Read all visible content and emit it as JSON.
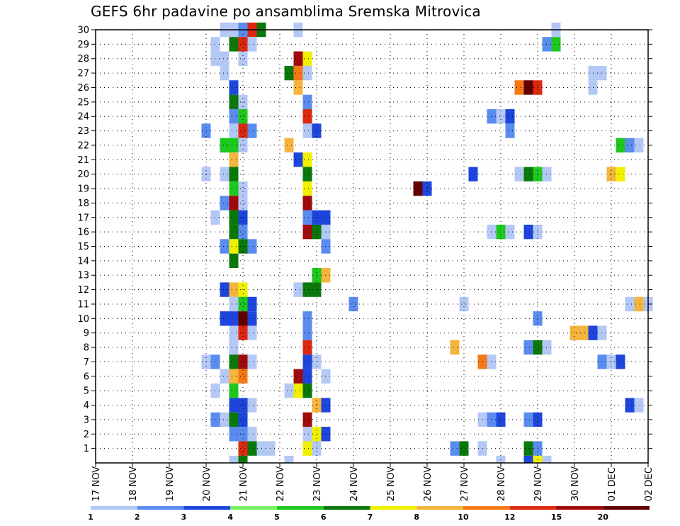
{
  "chart_data": {
    "type": "heatmap",
    "title": "GEFS 6hr padavine po ansamblima Sremska Mitrovica",
    "xlabel": "",
    "ylabel": "",
    "x_ticks": [
      "17 NOV",
      "18 NOV",
      "19 NOV",
      "20 NOV",
      "21 NOV",
      "22 NOV",
      "23 NOV",
      "24 NOV",
      "25 NOV",
      "26 NOV",
      "27 NOV",
      "28 NOV",
      "29 NOV",
      "30 NOV",
      "01 DEC",
      "02 DEC"
    ],
    "y_ticks": [
      1,
      2,
      3,
      4,
      5,
      6,
      7,
      8,
      9,
      10,
      11,
      12,
      13,
      14,
      15,
      16,
      17,
      18,
      19,
      20,
      21,
      22,
      23,
      24,
      25,
      26,
      27,
      28,
      29,
      30
    ],
    "ylim": [
      0,
      30
    ],
    "grid": true,
    "legend": {
      "placement": "bottom",
      "labels": [
        "1",
        "2",
        "3",
        "4",
        "5",
        "6",
        "7",
        "8",
        "10",
        "12",
        "15",
        "20"
      ],
      "colors": [
        "#b4c8f5",
        "#5a8cf0",
        "#1e46dc",
        "#78f064",
        "#1ec81e",
        "#0a780a",
        "#f0f000",
        "#f5b43c",
        "#f57814",
        "#dc280f",
        "#a00a0a",
        "#640000"
      ]
    },
    "cells": [
      [
        3.5,
        30,
        1
      ],
      [
        3.75,
        30,
        1
      ],
      [
        4.0,
        30,
        2
      ],
      [
        4.25,
        30,
        10
      ],
      [
        4.5,
        30,
        6
      ],
      [
        5.5,
        30,
        1
      ],
      [
        12.5,
        30,
        1
      ],
      [
        3.25,
        29,
        1
      ],
      [
        3.75,
        29,
        6
      ],
      [
        4.0,
        29,
        10
      ],
      [
        4.25,
        29,
        1
      ],
      [
        12.25,
        29,
        2
      ],
      [
        12.5,
        29,
        5
      ],
      [
        3.25,
        28,
        1
      ],
      [
        3.5,
        28,
        1
      ],
      [
        4.0,
        28,
        1
      ],
      [
        5.5,
        28,
        11
      ],
      [
        5.75,
        28,
        7
      ],
      [
        3.5,
        27,
        1
      ],
      [
        5.25,
        27,
        6
      ],
      [
        5.5,
        27,
        9
      ],
      [
        5.75,
        27,
        1
      ],
      [
        13.5,
        27,
        1
      ],
      [
        13.75,
        27,
        1
      ],
      [
        3.75,
        26,
        3
      ],
      [
        5.5,
        26,
        8
      ],
      [
        11.5,
        26,
        9
      ],
      [
        11.75,
        26,
        12
      ],
      [
        12.0,
        26,
        10
      ],
      [
        13.5,
        26,
        1
      ],
      [
        3.75,
        25,
        6
      ],
      [
        4.0,
        25,
        1
      ],
      [
        5.75,
        25,
        2
      ],
      [
        3.75,
        24,
        2
      ],
      [
        4.0,
        24,
        5
      ],
      [
        5.75,
        24,
        10
      ],
      [
        10.75,
        24,
        2
      ],
      [
        11.0,
        24,
        1
      ],
      [
        11.25,
        24,
        3
      ],
      [
        3.0,
        23,
        2
      ],
      [
        3.75,
        23,
        1
      ],
      [
        4.0,
        23,
        10
      ],
      [
        4.25,
        23,
        2
      ],
      [
        5.75,
        23,
        1
      ],
      [
        6.0,
        23,
        3
      ],
      [
        11.25,
        23,
        2
      ],
      [
        3.5,
        22,
        5
      ],
      [
        3.75,
        22,
        5
      ],
      [
        4.0,
        22,
        1
      ],
      [
        5.25,
        22,
        8
      ],
      [
        14.25,
        22,
        5
      ],
      [
        14.5,
        22,
        2
      ],
      [
        14.75,
        22,
        1
      ],
      [
        3.75,
        21,
        8
      ],
      [
        5.5,
        21,
        3
      ],
      [
        5.75,
        21,
        7
      ],
      [
        3.0,
        20,
        1
      ],
      [
        3.5,
        20,
        1
      ],
      [
        3.75,
        20,
        6
      ],
      [
        5.75,
        20,
        6
      ],
      [
        10.25,
        20,
        3
      ],
      [
        11.5,
        20,
        1
      ],
      [
        11.75,
        20,
        6
      ],
      [
        12.0,
        20,
        5
      ],
      [
        12.25,
        20,
        1
      ],
      [
        14.0,
        20,
        8
      ],
      [
        14.25,
        20,
        7
      ],
      [
        3.75,
        19,
        5
      ],
      [
        4.0,
        19,
        1
      ],
      [
        5.75,
        19,
        7
      ],
      [
        8.75,
        19,
        12
      ],
      [
        9.0,
        19,
        3
      ],
      [
        3.5,
        18,
        2
      ],
      [
        3.75,
        18,
        11
      ],
      [
        4.0,
        18,
        1
      ],
      [
        5.75,
        18,
        11
      ],
      [
        3.25,
        17,
        1
      ],
      [
        3.75,
        17,
        6
      ],
      [
        4.0,
        17,
        3
      ],
      [
        5.75,
        17,
        2
      ],
      [
        6.0,
        17,
        3
      ],
      [
        6.25,
        17,
        3
      ],
      [
        3.75,
        16,
        6
      ],
      [
        4.0,
        16,
        2
      ],
      [
        5.75,
        16,
        11
      ],
      [
        6.0,
        16,
        6
      ],
      [
        6.25,
        16,
        1
      ],
      [
        10.75,
        16,
        1
      ],
      [
        11.0,
        16,
        5
      ],
      [
        11.25,
        16,
        1
      ],
      [
        11.75,
        16,
        3
      ],
      [
        12.0,
        16,
        1
      ],
      [
        3.5,
        15,
        2
      ],
      [
        3.75,
        15,
        7
      ],
      [
        4.0,
        15,
        6
      ],
      [
        4.25,
        15,
        2
      ],
      [
        6.25,
        15,
        2
      ],
      [
        3.75,
        14,
        6
      ],
      [
        6.0,
        13,
        5
      ],
      [
        6.25,
        13,
        8
      ],
      [
        3.5,
        12,
        3
      ],
      [
        3.75,
        12,
        8
      ],
      [
        4.0,
        12,
        7
      ],
      [
        5.5,
        12,
        1
      ],
      [
        5.75,
        12,
        6
      ],
      [
        6.0,
        12,
        6
      ],
      [
        3.75,
        11,
        1
      ],
      [
        4.0,
        11,
        5
      ],
      [
        4.25,
        11,
        3
      ],
      [
        7.0,
        11,
        2
      ],
      [
        10.0,
        11,
        1
      ],
      [
        14.5,
        11,
        1
      ],
      [
        14.75,
        11,
        8
      ],
      [
        15.0,
        11,
        1
      ],
      [
        3.5,
        10,
        3
      ],
      [
        3.75,
        10,
        3
      ],
      [
        4.0,
        10,
        12
      ],
      [
        4.25,
        10,
        3
      ],
      [
        5.75,
        10,
        2
      ],
      [
        12.0,
        10,
        2
      ],
      [
        3.75,
        9,
        1
      ],
      [
        4.0,
        9,
        10
      ],
      [
        4.25,
        9,
        1
      ],
      [
        5.75,
        9,
        2
      ],
      [
        13.0,
        9,
        8
      ],
      [
        13.25,
        9,
        8
      ],
      [
        13.5,
        9,
        3
      ],
      [
        13.75,
        9,
        1
      ],
      [
        3.75,
        8,
        1
      ],
      [
        5.75,
        8,
        10
      ],
      [
        9.75,
        8,
        8
      ],
      [
        11.75,
        8,
        2
      ],
      [
        12.0,
        8,
        6
      ],
      [
        12.25,
        8,
        1
      ],
      [
        3.0,
        7,
        1
      ],
      [
        3.25,
        7,
        2
      ],
      [
        3.75,
        7,
        6
      ],
      [
        4.0,
        7,
        11
      ],
      [
        4.25,
        7,
        1
      ],
      [
        5.75,
        7,
        3
      ],
      [
        6.0,
        7,
        1
      ],
      [
        10.5,
        7,
        9
      ],
      [
        10.75,
        7,
        1
      ],
      [
        13.75,
        7,
        2
      ],
      [
        14.0,
        7,
        1
      ],
      [
        14.25,
        7,
        3
      ],
      [
        3.5,
        6,
        1
      ],
      [
        3.75,
        6,
        8
      ],
      [
        4.0,
        6,
        9
      ],
      [
        5.5,
        6,
        11
      ],
      [
        5.75,
        6,
        3
      ],
      [
        6.25,
        6,
        1
      ],
      [
        3.25,
        5,
        1
      ],
      [
        3.75,
        5,
        5
      ],
      [
        5.25,
        5,
        1
      ],
      [
        5.5,
        5,
        7
      ],
      [
        5.75,
        5,
        6
      ],
      [
        3.75,
        4,
        3
      ],
      [
        4.0,
        4,
        3
      ],
      [
        4.25,
        4,
        1
      ],
      [
        6.0,
        4,
        8
      ],
      [
        6.25,
        4,
        3
      ],
      [
        14.5,
        4,
        3
      ],
      [
        14.75,
        4,
        1
      ],
      [
        3.5,
        3,
        1
      ],
      [
        3.75,
        3,
        6
      ],
      [
        4.0,
        3,
        3
      ],
      [
        3.25,
        3,
        2
      ],
      [
        5.75,
        3,
        11
      ],
      [
        10.5,
        3,
        1
      ],
      [
        10.75,
        3,
        2
      ],
      [
        11.0,
        3,
        3
      ],
      [
        11.75,
        3,
        2
      ],
      [
        12.0,
        3,
        3
      ],
      [
        3.75,
        2,
        2
      ],
      [
        4.0,
        2,
        2
      ],
      [
        4.25,
        2,
        1
      ],
      [
        5.75,
        2,
        1
      ],
      [
        6.0,
        2,
        7
      ],
      [
        6.25,
        2,
        3
      ],
      [
        4.0,
        1,
        10
      ],
      [
        4.25,
        1,
        6
      ],
      [
        4.5,
        1,
        1
      ],
      [
        4.75,
        1,
        1
      ],
      [
        5.75,
        1,
        7
      ],
      [
        6.0,
        1,
        1
      ],
      [
        9.75,
        1,
        2
      ],
      [
        10.0,
        1,
        6
      ],
      [
        10.5,
        1,
        1
      ],
      [
        11.75,
        1,
        6
      ],
      [
        12.0,
        1,
        2
      ],
      [
        3.75,
        0,
        1
      ],
      [
        4.0,
        0,
        6
      ],
      [
        5.25,
        0,
        1
      ],
      [
        11.0,
        0,
        1
      ],
      [
        11.75,
        0,
        3
      ],
      [
        12.0,
        0,
        7
      ],
      [
        12.25,
        0,
        1
      ]
    ]
  }
}
